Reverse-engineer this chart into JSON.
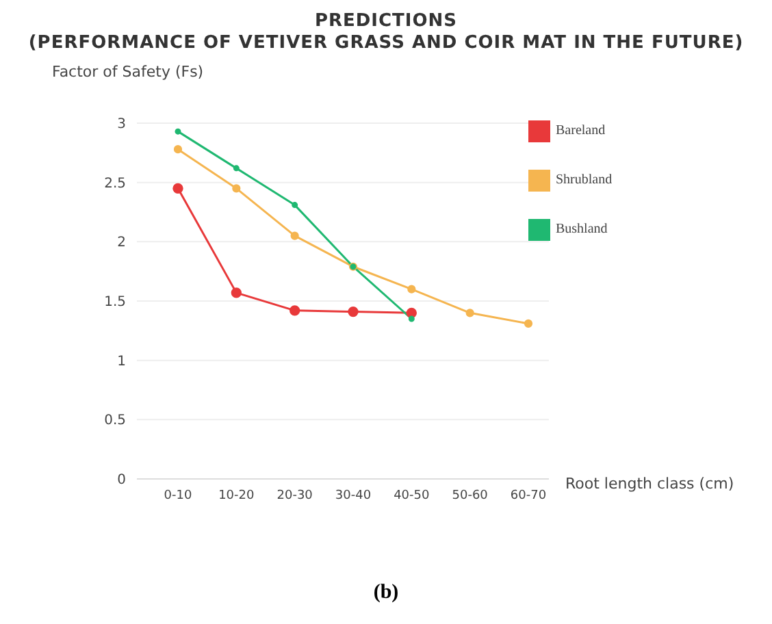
{
  "chart_data": {
    "type": "line",
    "title": "PREDICTIONS",
    "subtitle": "(PERFORMANCE OF VETIVER GRASS AND COIR MAT IN THE FUTURE)",
    "ylabel": "Factor of Safety (Fs)",
    "xlabel": "Root length class (cm)",
    "categories": [
      "0-10",
      "10-20",
      "20-30",
      "30-40",
      "40-50",
      "50-60",
      "60-70"
    ],
    "series": [
      {
        "name": "Bareland",
        "color": "#e8393a",
        "values": [
          2.45,
          1.57,
          1.42,
          1.41,
          1.4,
          null,
          null
        ]
      },
      {
        "name": "Shrubland",
        "color": "#f5b550",
        "values": [
          2.78,
          2.45,
          2.05,
          1.79,
          1.6,
          1.4,
          1.31
        ]
      },
      {
        "name": "Bushland",
        "color": "#1fb871",
        "values": [
          2.93,
          2.62,
          2.31,
          1.79,
          1.35,
          null,
          null
        ]
      }
    ],
    "ylim": [
      0,
      3
    ],
    "yticks": [
      0,
      0.5,
      1,
      1.5,
      2,
      2.5,
      3
    ],
    "grid": "y",
    "legend": "top right",
    "marker": "circle",
    "line_style": "solid",
    "annotations": [
      "(b)"
    ]
  }
}
